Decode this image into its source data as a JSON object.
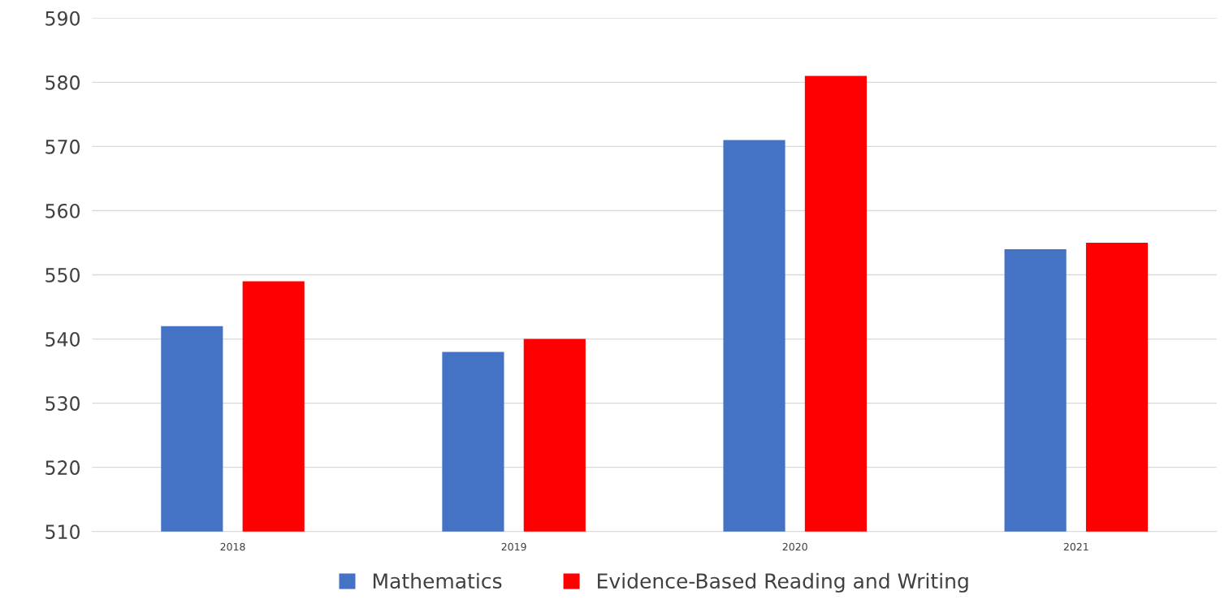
{
  "chart_data": {
    "type": "bar",
    "categories": [
      "2018",
      "2019",
      "2020",
      "2021"
    ],
    "series": [
      {
        "name": "Mathematics",
        "color": "#4472c4",
        "values": [
          542,
          538,
          571,
          554
        ]
      },
      {
        "name": "Evidence-Based Reading and Writing",
        "color": "#ff0000",
        "values": [
          549,
          540,
          581,
          555
        ]
      }
    ],
    "ylim": [
      510,
      590
    ],
    "yticks": [
      510,
      520,
      530,
      540,
      550,
      560,
      570,
      580,
      590
    ],
    "grid": "y",
    "legend": "bottom"
  }
}
